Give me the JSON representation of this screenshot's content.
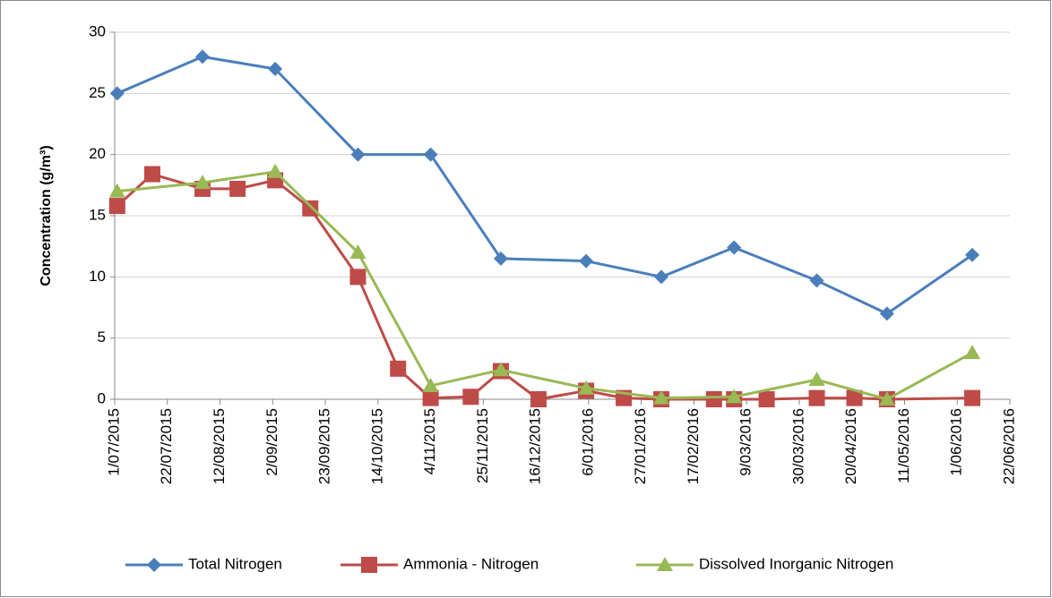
{
  "chart_data": {
    "type": "line",
    "y_label": "Concentration (g/m³)",
    "xlim": [
      "2015-07-01",
      "2016-06-22"
    ],
    "xticks": [
      {
        "value": "2015-07-01",
        "label": "1/07/2015"
      },
      {
        "value": "2015-07-22",
        "label": "22/07/2015"
      },
      {
        "value": "2015-08-12",
        "label": "12/08/2015"
      },
      {
        "value": "2015-09-02",
        "label": "2/09/2015"
      },
      {
        "value": "2015-09-23",
        "label": "23/09/2015"
      },
      {
        "value": "2015-10-14",
        "label": "14/10/2015"
      },
      {
        "value": "2015-11-04",
        "label": "4/11/2015"
      },
      {
        "value": "2015-11-25",
        "label": "25/11/2015"
      },
      {
        "value": "2015-12-16",
        "label": "16/12/2015"
      },
      {
        "value": "2016-01-06",
        "label": "6/01/2016"
      },
      {
        "value": "2016-01-27",
        "label": "27/01/2016"
      },
      {
        "value": "2016-02-17",
        "label": "17/02/2016"
      },
      {
        "value": "2016-03-09",
        "label": "9/03/2016"
      },
      {
        "value": "2016-03-30",
        "label": "30/03/2016"
      },
      {
        "value": "2016-04-20",
        "label": "20/04/2016"
      },
      {
        "value": "2016-05-11",
        "label": "11/05/2016"
      },
      {
        "value": "2016-06-01",
        "label": "1/06/2016"
      },
      {
        "value": "2016-06-22",
        "label": "22/06/2016"
      }
    ],
    "ylim": [
      0,
      30
    ],
    "yticks": [
      0,
      5,
      10,
      15,
      20,
      25,
      30
    ],
    "grid": true,
    "legend": "bottom",
    "series": [
      {
        "name": "Total Nitrogen",
        "color": "#4a7ebb",
        "marker": "diamond",
        "x": [
          "2015-07-02",
          "2015-08-05",
          "2015-09-03",
          "2015-10-06",
          "2015-11-04",
          "2015-12-02",
          "2016-01-05",
          "2016-02-04",
          "2016-03-04",
          "2016-04-06",
          "2016-05-04",
          "2016-06-07"
        ],
        "values": [
          25,
          28,
          27,
          20,
          20,
          11.5,
          11.3,
          10,
          12.4,
          9.7,
          7,
          11.8
        ]
      },
      {
        "name": "Ammonia - Nitrogen",
        "color": "#be4b48",
        "marker": "square",
        "x": [
          "2015-07-02",
          "2015-07-16",
          "2015-08-05",
          "2015-08-19",
          "2015-09-03",
          "2015-09-17",
          "2015-10-06",
          "2015-10-22",
          "2015-11-04",
          "2015-11-20",
          "2015-12-02",
          "2015-12-17",
          "2016-01-05",
          "2016-01-20",
          "2016-02-04",
          "2016-02-25",
          "2016-03-04",
          "2016-03-17",
          "2016-04-06",
          "2016-04-21",
          "2016-05-04",
          "2016-06-07"
        ],
        "values": [
          15.8,
          18.4,
          17.2,
          17.2,
          17.9,
          15.6,
          10,
          2.5,
          0.1,
          0.2,
          2.3,
          0,
          0.7,
          0.1,
          0,
          0,
          0,
          0,
          0.1,
          0.1,
          0,
          0.1
        ]
      },
      {
        "name": "Dissolved Inorganic Nitrogen",
        "color": "#98b954",
        "marker": "triangle",
        "x": [
          "2015-07-02",
          "2015-08-05",
          "2015-09-03",
          "2015-10-06",
          "2015-11-04",
          "2015-12-02",
          "2016-01-05",
          "2016-02-04",
          "2016-03-04",
          "2016-04-06",
          "2016-05-04",
          "2016-06-07"
        ],
        "values": [
          17,
          17.7,
          18.6,
          12,
          1.1,
          2.4,
          0.9,
          0.1,
          0.2,
          1.6,
          0,
          3.8
        ]
      }
    ]
  }
}
